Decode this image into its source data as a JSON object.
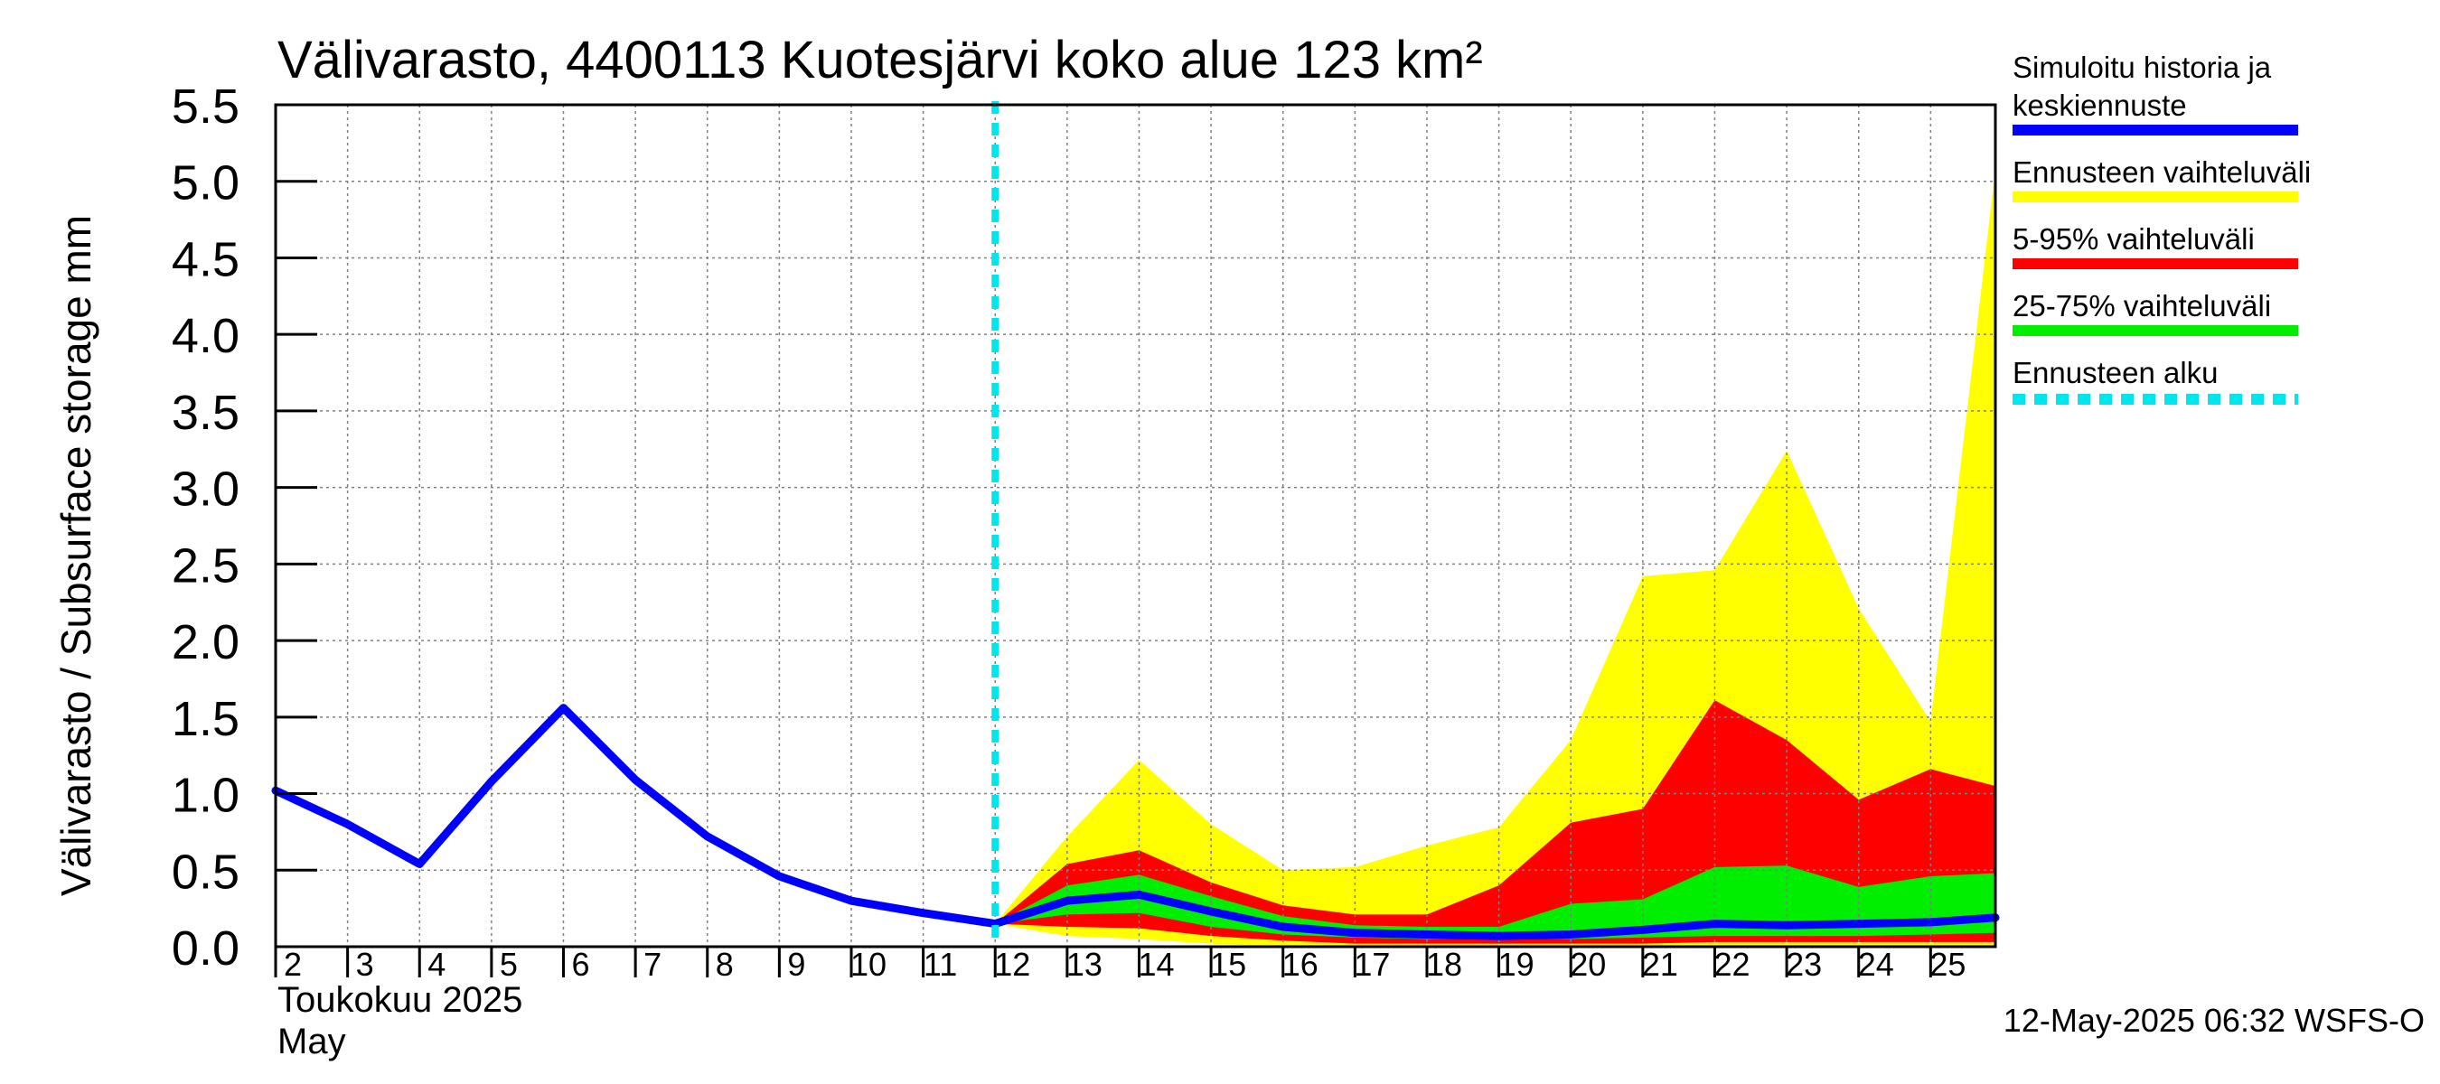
{
  "chart_data": {
    "type": "area",
    "title": "Välivarasto, 4400113 Kuotesjärvi koko alue 123 km²",
    "ylabel": "Välivarasto / Subsurface storage  mm",
    "xlabel_line1": "Toukokuu  2025",
    "xlabel_line2": "May",
    "timestamp": "12-May-2025 06:32 WSFS-O",
    "ylim": [
      0,
      5.5
    ],
    "xlim": [
      2,
      25.9
    ],
    "yticks": [
      "0.0",
      "0.5",
      "1.0",
      "1.5",
      "2.0",
      "2.5",
      "3.0",
      "3.5",
      "4.0",
      "4.5",
      "5.0",
      "5.5"
    ],
    "ytick_values": [
      0,
      0.5,
      1.0,
      1.5,
      2.0,
      2.5,
      3.0,
      3.5,
      4.0,
      4.5,
      5.0,
      5.5
    ],
    "xticks": [
      "2",
      "3",
      "4",
      "5",
      "6",
      "7",
      "8",
      "9",
      "10",
      "11",
      "12",
      "13",
      "14",
      "15",
      "16",
      "17",
      "18",
      "19",
      "20",
      "21",
      "22",
      "23",
      "24",
      "25"
    ],
    "xtick_values": [
      2,
      3,
      4,
      5,
      6,
      7,
      8,
      9,
      10,
      11,
      12,
      13,
      14,
      15,
      16,
      17,
      18,
      19,
      20,
      21,
      22,
      23,
      24,
      25
    ],
    "grid": true,
    "legend_position": "right",
    "forecast_start": 12,
    "legend": [
      {
        "label_lines": [
          "Simuloitu historia ja",
          "keskiennuste"
        ],
        "color": "#0000ff",
        "style": "solid"
      },
      {
        "label_lines": [
          "Ennusteen vaihteluväli"
        ],
        "color": "#ffff00",
        "style": "solid"
      },
      {
        "label_lines": [
          "5-95% vaihteluväli"
        ],
        "color": "#ff0000",
        "style": "solid"
      },
      {
        "label_lines": [
          "25-75% vaihteluväli"
        ],
        "color": "#00ee00",
        "style": "solid"
      },
      {
        "label_lines": [
          "Ennusteen alku"
        ],
        "color": "#00e5ee",
        "style": "dashed"
      }
    ],
    "x_forecast": [
      12,
      13,
      14,
      15,
      16,
      17,
      18,
      19,
      20,
      21,
      22,
      23,
      24,
      25,
      25.9
    ],
    "bands": [
      {
        "name": "Ennusteen vaihteluväli",
        "color": "#ffff00",
        "upper": [
          0.15,
          0.72,
          1.22,
          0.8,
          0.5,
          0.52,
          0.66,
          0.78,
          1.35,
          2.42,
          2.46,
          3.24,
          2.21,
          1.47,
          5.08
        ],
        "lower": [
          0.15,
          0.07,
          0.05,
          0.02,
          0.0,
          0.0,
          0.0,
          0.0,
          0.0,
          0.0,
          0.0,
          0.0,
          0.0,
          0.0,
          0.0
        ]
      },
      {
        "name": "5-95% vaihteluväli",
        "color": "#ff0000",
        "upper": [
          0.15,
          0.54,
          0.63,
          0.42,
          0.27,
          0.21,
          0.21,
          0.4,
          0.81,
          0.9,
          1.61,
          1.35,
          0.96,
          1.16,
          1.05
        ],
        "lower": [
          0.15,
          0.13,
          0.12,
          0.07,
          0.04,
          0.02,
          0.02,
          0.02,
          0.02,
          0.02,
          0.03,
          0.03,
          0.03,
          0.03,
          0.03
        ]
      },
      {
        "name": "25-75% vaihteluväli",
        "color": "#00ee00",
        "upper": [
          0.15,
          0.4,
          0.47,
          0.33,
          0.2,
          0.14,
          0.13,
          0.13,
          0.28,
          0.31,
          0.52,
          0.53,
          0.39,
          0.46,
          0.48
        ],
        "lower": [
          0.15,
          0.21,
          0.22,
          0.13,
          0.08,
          0.06,
          0.05,
          0.05,
          0.05,
          0.06,
          0.07,
          0.07,
          0.07,
          0.08,
          0.09
        ]
      }
    ],
    "series": [
      {
        "name": "Simuloitu historia ja keskiennuste",
        "color": "#0000ff",
        "x": [
          2,
          3,
          4,
          5,
          6,
          7,
          8,
          9,
          10,
          11,
          12,
          13,
          14,
          15,
          16,
          17,
          18,
          19,
          20,
          21,
          22,
          23,
          24,
          25,
          25.9
        ],
        "values": [
          1.02,
          0.8,
          0.54,
          1.08,
          1.56,
          1.09,
          0.72,
          0.46,
          0.3,
          0.22,
          0.15,
          0.3,
          0.34,
          0.23,
          0.13,
          0.09,
          0.08,
          0.07,
          0.08,
          0.11,
          0.15,
          0.14,
          0.15,
          0.16,
          0.19
        ]
      }
    ]
  }
}
